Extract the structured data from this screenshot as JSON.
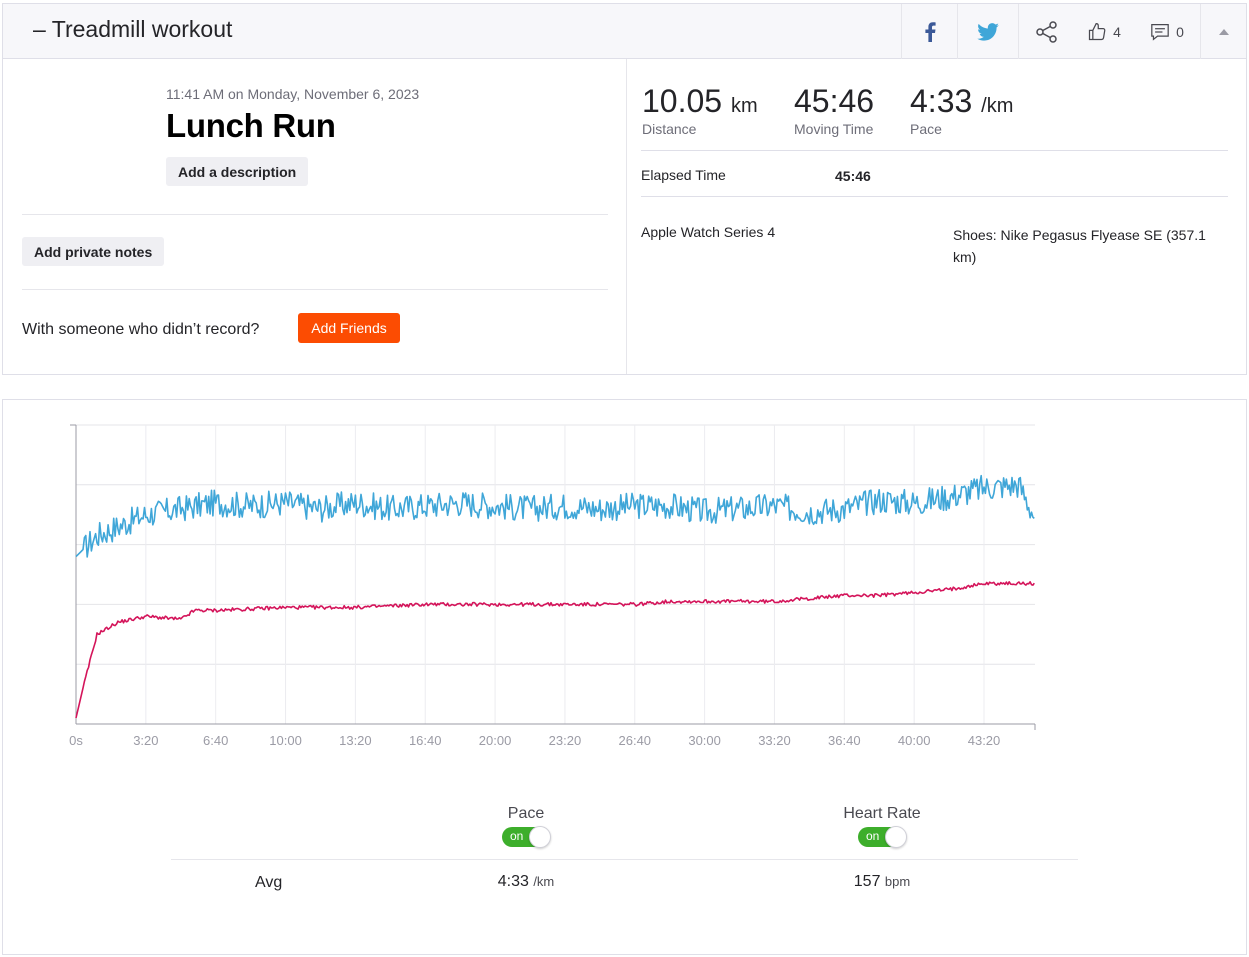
{
  "header": {
    "title": "– Treadmill workout",
    "kudos_count": "4",
    "comment_count": "0"
  },
  "activity": {
    "datetime": "11:41 AM on Monday, November 6, 2023",
    "name": "Lunch Run",
    "add_description_label": "Add a description",
    "add_private_notes_label": "Add private notes",
    "with_someone_text": "With someone who didn’t record?",
    "add_friends_label": "Add Friends"
  },
  "stats": {
    "distance": {
      "value": "10.05",
      "unit": "km",
      "label": "Distance"
    },
    "moving_time": {
      "value": "45:46",
      "label": "Moving Time"
    },
    "pace": {
      "value": "4:33",
      "unit": "/km",
      "label": "Pace"
    },
    "elapsed_label": "Elapsed Time",
    "elapsed_value": "45:46",
    "device": "Apple Watch Series 4",
    "shoes_line1": "Shoes: Nike Pegasus Flyease SE (357.1",
    "shoes_line2": "km)"
  },
  "colors": {
    "pace_line": "#3fa6d8",
    "heart_rate_line": "#d4145a",
    "toggle_on": "#3dae2b",
    "brand_orange": "#fc4c02"
  },
  "chart_data": {
    "type": "line",
    "x_unit": "seconds",
    "x_range": [
      0,
      2746
    ],
    "x_tick_labels": [
      "0s",
      "3:20",
      "6:40",
      "10:00",
      "13:20",
      "16:40",
      "20:00",
      "23:20",
      "26:40",
      "30:00",
      "33:20",
      "36:40",
      "40:00",
      "43:20"
    ],
    "grid": true,
    "series": [
      {
        "name": "Pace",
        "color": "#3fa6d8",
        "y_range": [
          0,
          1
        ],
        "x": [
          0,
          60,
          120,
          200,
          300,
          400,
          500,
          600,
          700,
          800,
          900,
          1000,
          1100,
          1200,
          1300,
          1400,
          1500,
          1600,
          1700,
          1800,
          1900,
          2000,
          2100,
          2200,
          2300,
          2400,
          2500,
          2600,
          2700,
          2746
        ],
        "values": [
          0.56,
          0.63,
          0.66,
          0.7,
          0.72,
          0.74,
          0.73,
          0.74,
          0.72,
          0.74,
          0.72,
          0.73,
          0.74,
          0.73,
          0.72,
          0.73,
          0.72,
          0.73,
          0.73,
          0.71,
          0.72,
          0.73,
          0.71,
          0.72,
          0.75,
          0.74,
          0.76,
          0.79,
          0.8,
          0.69
        ]
      },
      {
        "name": "Heart Rate",
        "color": "#d4145a",
        "y_range": [
          0,
          1
        ],
        "x": [
          0,
          20,
          60,
          120,
          200,
          300,
          340,
          400,
          600,
          700,
          800,
          1000,
          1200,
          1400,
          1600,
          1700,
          1800,
          2000,
          2100,
          2200,
          2300,
          2400,
          2500,
          2600,
          2700,
          2746
        ],
        "values": [
          0.02,
          0.12,
          0.3,
          0.34,
          0.36,
          0.35,
          0.38,
          0.38,
          0.39,
          0.39,
          0.39,
          0.4,
          0.4,
          0.4,
          0.4,
          0.41,
          0.41,
          0.41,
          0.42,
          0.43,
          0.43,
          0.44,
          0.45,
          0.47,
          0.47,
          0.47
        ]
      }
    ]
  },
  "legend": {
    "pace_label": "Pace",
    "hr_label": "Heart Rate",
    "toggle_on_text": "on"
  },
  "averages": {
    "label": "Avg",
    "pace_value": "4:33",
    "pace_unit": "/km",
    "hr_value": "157",
    "hr_unit": "bpm"
  }
}
